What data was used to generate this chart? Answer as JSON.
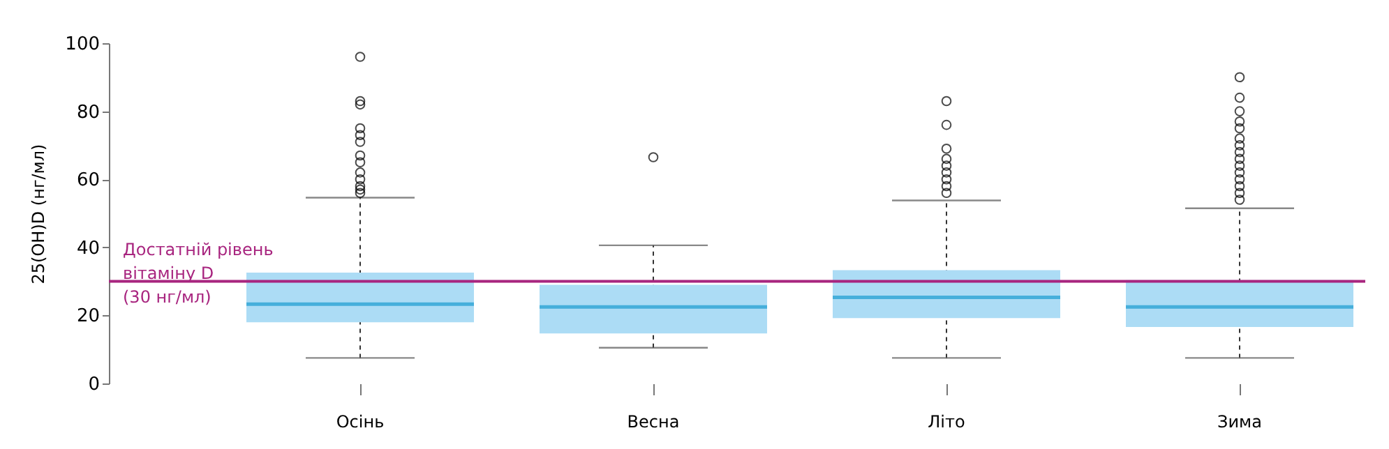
{
  "chart_data": {
    "type": "box",
    "ylabel": "25(OH)D (нг/мл)",
    "categories": [
      "Осінь",
      "Весна",
      "Літо",
      "Зима"
    ],
    "series": [
      {
        "color": "#acdcf5",
        "boxes": [
          {
            "low": 7.5,
            "q1": 18,
            "median": 23.3,
            "q3": 32.6,
            "high": 54.6,
            "outliers": [
              96,
              83,
              82,
              75,
              73,
              71,
              67,
              65,
              62,
              60,
              58,
              57,
              56
            ]
          },
          {
            "low": 10.5,
            "q1": 14.7,
            "median": 22.5,
            "q3": 29,
            "high": 40.6,
            "outliers": [
              66.5
            ]
          },
          {
            "low": 7.5,
            "q1": 19.2,
            "median": 25.3,
            "q3": 33.3,
            "high": 53.8,
            "outliers": [
              83,
              76,
              69,
              66,
              64,
              62,
              60,
              58,
              56
            ]
          },
          {
            "low": 7.5,
            "q1": 16.6,
            "median": 22.5,
            "q3": 30.4,
            "high": 51.5,
            "outliers": [
              90,
              84,
              80,
              77,
              75,
              72,
              70,
              68,
              66,
              64,
              62,
              60,
              58,
              56,
              54
            ]
          }
        ]
      }
    ],
    "ylim": [
      0,
      100
    ],
    "yticks": [
      0,
      20,
      40,
      60,
      80,
      100
    ],
    "grid": false,
    "ref_lines": [
      {
        "axis": "y",
        "value": 30,
        "label": "Достатній рівень\nвітаміну D\n(30 нг/мл)",
        "color": "#a8257f"
      }
    ]
  }
}
